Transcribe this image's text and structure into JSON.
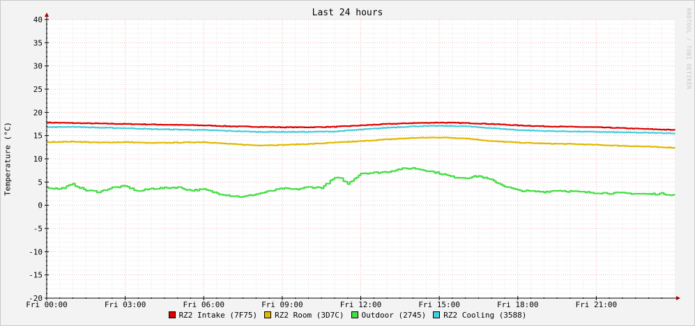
{
  "chart_data": {
    "type": "line",
    "title": "Last 24 hours",
    "ylabel": "Temperature (°C)",
    "xlabel": "",
    "ylim": [
      -20,
      40
    ],
    "xlim": [
      0,
      24
    ],
    "x_unit": "hours since Fri 00:00",
    "yticks": [
      -20,
      -15,
      -10,
      -5,
      0,
      5,
      10,
      15,
      20,
      25,
      30,
      35,
      40
    ],
    "xticks": [
      {
        "x": 0,
        "label": "Fri 00:00"
      },
      {
        "x": 3,
        "label": "Fri 03:00"
      },
      {
        "x": 6,
        "label": "Fri 06:00"
      },
      {
        "x": 9,
        "label": "Fri 09:00"
      },
      {
        "x": 12,
        "label": "Fri 12:00"
      },
      {
        "x": 15,
        "label": "Fri 15:00"
      },
      {
        "x": 18,
        "label": "Fri 18:00"
      },
      {
        "x": 21,
        "label": "Fri 21:00"
      }
    ],
    "grid": true,
    "legend_position": "bottom",
    "series": [
      {
        "name": "RZ2 Intake (7F75)",
        "color": "#e00000",
        "x": [
          0,
          1,
          2,
          3,
          4,
          5,
          6,
          7,
          8,
          9,
          10,
          11,
          12,
          13,
          14,
          15,
          16,
          17,
          18,
          19,
          20,
          21,
          22,
          23,
          24
        ],
        "y": [
          17.8,
          17.7,
          17.6,
          17.5,
          17.4,
          17.3,
          17.2,
          17.0,
          16.9,
          16.8,
          16.8,
          16.9,
          17.2,
          17.5,
          17.7,
          17.8,
          17.7,
          17.5,
          17.2,
          17.0,
          16.9,
          16.8,
          16.6,
          16.4,
          16.2
        ]
      },
      {
        "name": "RZ2 Room (3D7C)",
        "color": "#e0b800",
        "x": [
          0,
          1,
          2,
          3,
          4,
          5,
          6,
          7,
          8,
          9,
          10,
          11,
          12,
          13,
          14,
          15,
          16,
          17,
          18,
          19,
          20,
          21,
          22,
          23,
          24
        ],
        "y": [
          13.6,
          13.7,
          13.5,
          13.6,
          13.4,
          13.5,
          13.6,
          13.2,
          12.9,
          13.0,
          13.2,
          13.5,
          13.8,
          14.2,
          14.5,
          14.6,
          14.4,
          13.8,
          13.5,
          13.3,
          13.2,
          13.0,
          12.8,
          12.6,
          12.4
        ]
      },
      {
        "name": "Outdoor (2745)",
        "color": "#44dd44",
        "x": [
          0,
          0.5,
          1,
          1.5,
          2,
          2.5,
          3,
          3.5,
          4,
          4.5,
          5,
          5.5,
          6,
          6.5,
          7,
          7.5,
          8,
          8.5,
          9,
          9.5,
          10,
          10.5,
          11,
          11.25,
          11.5,
          12,
          12.5,
          13,
          13.5,
          14,
          14.5,
          15,
          15.5,
          16,
          16.5,
          17,
          17.5,
          18,
          18.5,
          19,
          19.5,
          20,
          20.5,
          21,
          21.5,
          22,
          22.5,
          23,
          23.5,
          24
        ],
        "y": [
          3.8,
          3.5,
          4.5,
          3.2,
          2.9,
          3.8,
          4.1,
          3.0,
          3.6,
          3.7,
          3.9,
          3.2,
          3.4,
          2.6,
          2.1,
          1.8,
          2.4,
          3.0,
          3.6,
          3.4,
          3.9,
          3.8,
          5.9,
          5.7,
          4.6,
          6.9,
          7.0,
          7.2,
          7.8,
          8.0,
          7.5,
          6.9,
          6.1,
          5.9,
          6.3,
          5.4,
          4.1,
          3.2,
          3.0,
          2.9,
          3.2,
          3.0,
          2.8,
          2.7,
          2.6,
          2.6,
          2.5,
          2.4,
          2.5,
          2.2
        ]
      },
      {
        "name": "RZ2 Cooling (3588)",
        "color": "#44ccdd",
        "x": [
          0,
          1,
          2,
          3,
          4,
          5,
          6,
          7,
          8,
          9,
          10,
          11,
          12,
          13,
          14,
          15,
          16,
          17,
          18,
          19,
          20,
          21,
          22,
          23,
          24
        ],
        "y": [
          16.8,
          16.9,
          16.7,
          16.6,
          16.4,
          16.3,
          16.2,
          16.0,
          15.8,
          15.8,
          15.8,
          15.9,
          16.3,
          16.7,
          17.0,
          17.1,
          17.0,
          16.6,
          16.2,
          16.0,
          15.9,
          15.8,
          15.7,
          15.6,
          15.5
        ]
      }
    ]
  },
  "watermark": "RRDTOOL / TOBI OETIKER"
}
